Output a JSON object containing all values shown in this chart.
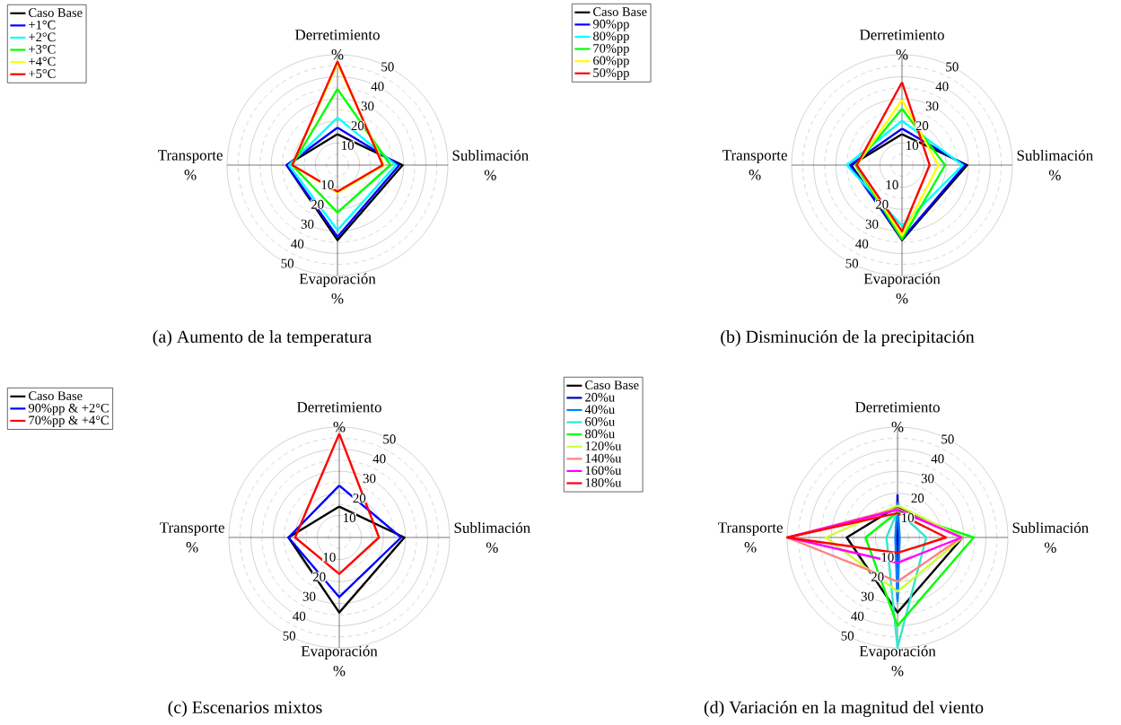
{
  "chart_data": [
    {
      "type": "radar",
      "title": "(a) Aumento de la temperatura",
      "ylabel": "%",
      "categories": [
        "Derretimiento",
        "Sublimación",
        "Evaporación",
        "Transporte"
      ],
      "ylim": [
        0,
        50
      ],
      "yticks": [
        10,
        20,
        30,
        40,
        50
      ],
      "annotations": [
        "10",
        "20",
        "30",
        "40",
        "50"
      ],
      "grid": true,
      "legend": "top left",
      "series": [
        {
          "name": "Caso Base",
          "color": "#000000",
          "values": [
            14,
            29.5,
            34,
            23
          ]
        },
        {
          "name": "+1°C",
          "color": "#0000ff",
          "values": [
            17,
            28,
            32.5,
            23
          ]
        },
        {
          "name": "+2°C",
          "color": "#00ffff",
          "values": [
            21.5,
            26.5,
            29.5,
            22
          ]
        },
        {
          "name": "+3°C",
          "color": "#00ff00",
          "values": [
            34.5,
            24,
            21.5,
            20.5
          ]
        },
        {
          "name": "+4°C",
          "color": "#ffff00",
          "values": [
            46,
            21,
            12.5,
            20.5
          ]
        },
        {
          "name": "+5°C",
          "color": "#ff0000",
          "values": [
            47,
            20.5,
            12,
            20.5
          ]
        }
      ]
    },
    {
      "type": "radar",
      "title": "(b) Disminución de la precipitación",
      "ylabel": "%",
      "categories": [
        "Derretimiento",
        "Sublimación",
        "Evaporación",
        "Transporte"
      ],
      "ylim": [
        0,
        50
      ],
      "yticks": [
        10,
        20,
        30,
        40,
        50
      ],
      "annotations": [
        "10",
        "20",
        "30",
        "40",
        "50"
      ],
      "grid": true,
      "legend": "top left",
      "series": [
        {
          "name": "Caso Base",
          "color": "#000000",
          "values": [
            14,
            29.5,
            34,
            23
          ]
        },
        {
          "name": "90%pp",
          "color": "#0000ff",
          "values": [
            16.5,
            28.5,
            33.5,
            23.5
          ]
        },
        {
          "name": "80%pp",
          "color": "#00ffff",
          "values": [
            20,
            27.5,
            27.5,
            25
          ]
        },
        {
          "name": "70%pp",
          "color": "#00ff00",
          "values": [
            25.5,
            19.5,
            33.5,
            21
          ]
        },
        {
          "name": "60%pp",
          "color": "#ffff00",
          "values": [
            29.5,
            16.5,
            32,
            20.5
          ]
        },
        {
          "name": "50%pp",
          "color": "#ff0000",
          "values": [
            37.5,
            12.5,
            30,
            20.5
          ]
        }
      ]
    },
    {
      "type": "radar",
      "title": "(c) Escenarios mixtos",
      "ylabel": "%",
      "categories": [
        "Derretimiento",
        "Sublimación",
        "Evaporación",
        "Transporte"
      ],
      "ylim": [
        0,
        50
      ],
      "yticks": [
        10,
        20,
        30,
        40,
        50
      ],
      "annotations": [
        "10",
        "20",
        "30",
        "40",
        "50"
      ],
      "grid": true,
      "legend": "top left",
      "series": [
        {
          "name": "Caso Base",
          "color": "#000000",
          "values": [
            14,
            29.5,
            34,
            23
          ]
        },
        {
          "name": "90%pp & +2°C",
          "color": "#0000ff",
          "values": [
            23.5,
            28,
            27,
            23
          ]
        },
        {
          "name": "70%pp & +4°C",
          "color": "#ff0000",
          "values": [
            47,
            18,
            16.5,
            20
          ]
        }
      ]
    },
    {
      "type": "radar",
      "title": "(d) Variación en la magnitud del viento",
      "ylabel": "%",
      "categories": [
        "Derretimiento",
        "Sublimación",
        "Evaporación",
        "Transporte"
      ],
      "ylim": [
        0,
        50
      ],
      "yticks": [
        10,
        20,
        30,
        40,
        50
      ],
      "annotations": [
        "10",
        "20",
        "30",
        "40",
        "50"
      ],
      "grid": true,
      "legend": "top left",
      "series": [
        {
          "name": "Caso Base",
          "color": "#000000",
          "values": [
            14,
            29.5,
            34,
            23
          ]
        },
        {
          "name": "20%u",
          "color": "#0000b4",
          "values": [
            19.5,
            0.5,
            28,
            0.5
          ]
        },
        {
          "name": "40%u",
          "color": "#0080ff",
          "values": [
            16,
            1,
            29,
            1
          ]
        },
        {
          "name": "60%u",
          "color": "#33e6cc",
          "values": [
            12,
            13,
            50,
            5
          ]
        },
        {
          "name": "80%u",
          "color": "#00ff00",
          "values": [
            11.5,
            34.5,
            40,
            14.5
          ]
        },
        {
          "name": "120%u",
          "color": "#ccff33",
          "values": [
            14.5,
            29.5,
            24.5,
            32.5
          ]
        },
        {
          "name": "140%u",
          "color": "#ff8080",
          "values": [
            13,
            29,
            20,
            50
          ]
        },
        {
          "name": "160%u",
          "color": "#ff00ff",
          "values": [
            12.5,
            29,
            11.5,
            49.5
          ]
        },
        {
          "name": "180%u",
          "color": "#ff0000",
          "values": [
            11,
            22,
            7,
            50
          ]
        }
      ]
    }
  ]
}
